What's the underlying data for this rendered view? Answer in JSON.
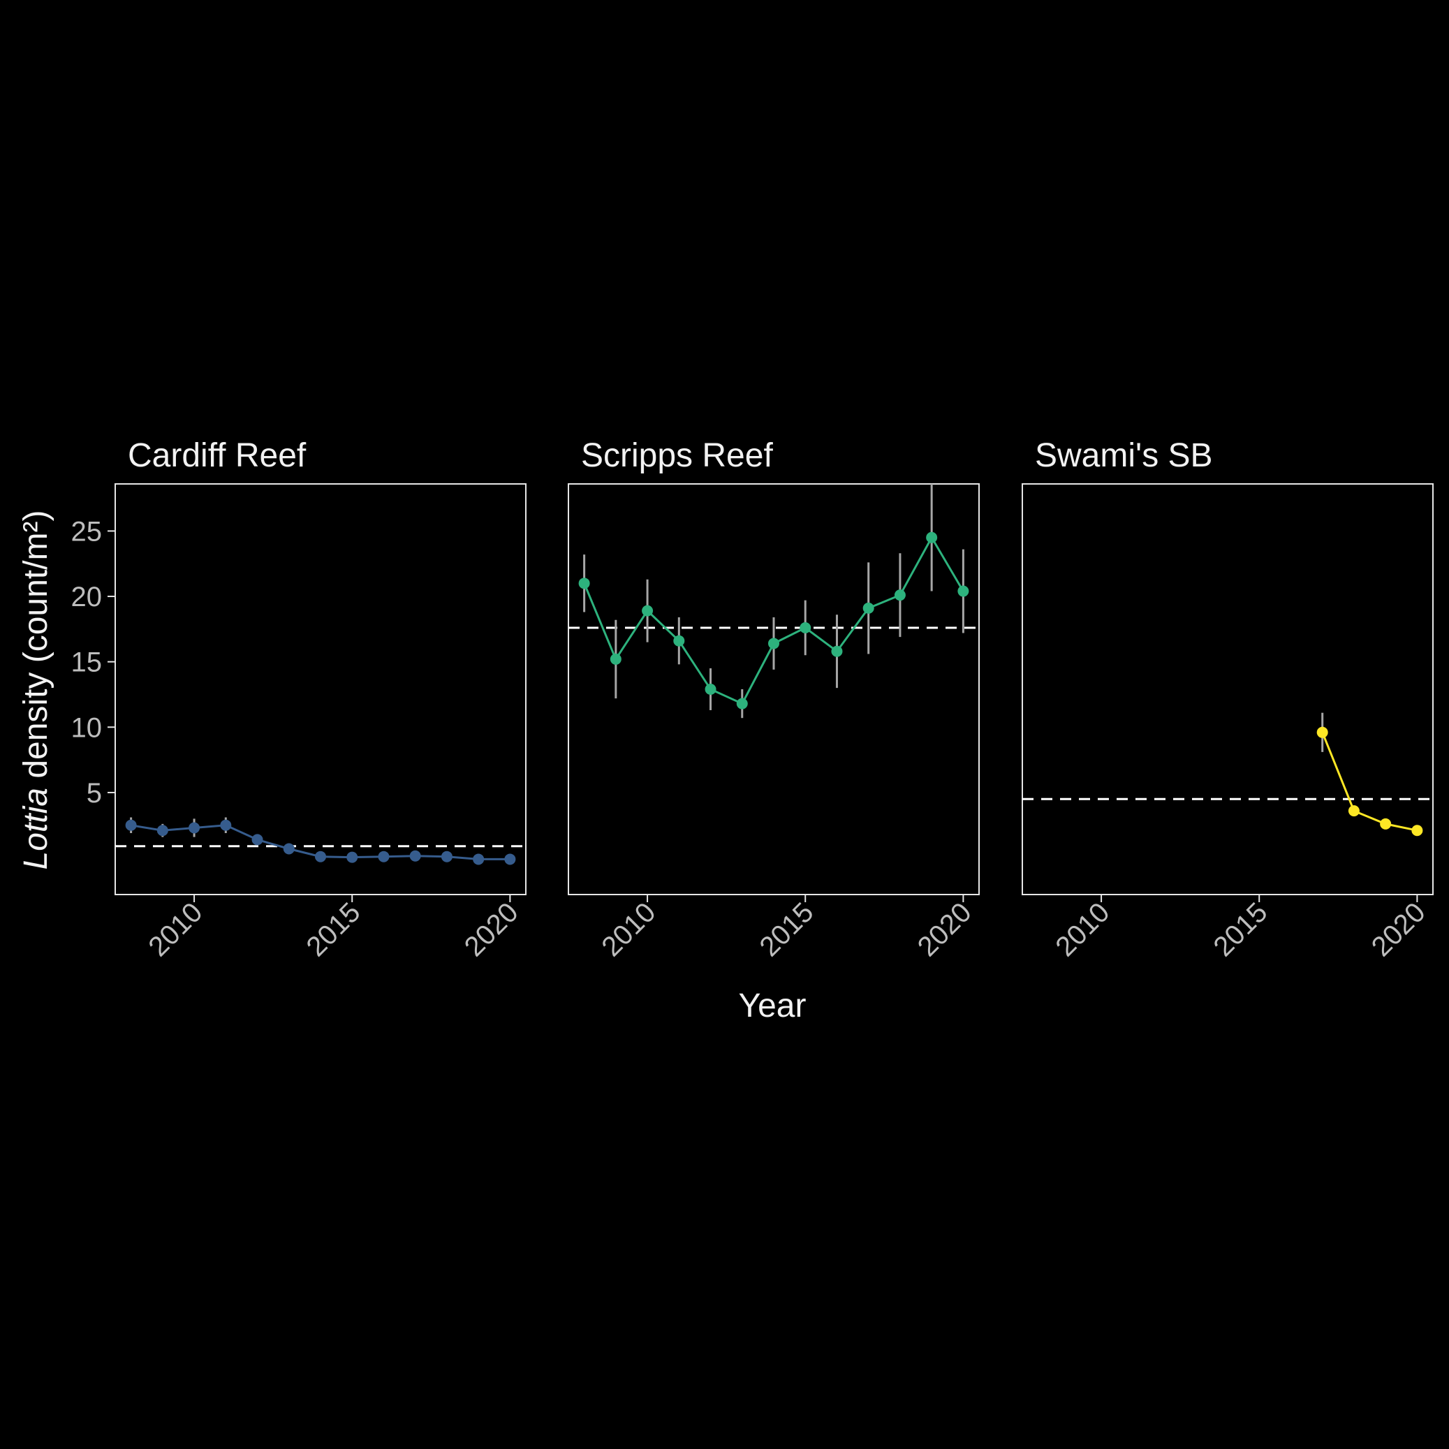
{
  "chart_data": {
    "type": "line",
    "facet": "panels",
    "xlabel": "Year",
    "ylabel": {
      "italic": "Lottia",
      "rest": " density (count/m²)"
    },
    "xlim": [
      2007.5,
      2020.5
    ],
    "ylim": [
      -2.8,
      28.6
    ],
    "x_ticks": [
      2010,
      2015,
      2020
    ],
    "y_ticks": [
      5,
      10,
      15,
      20,
      25
    ],
    "x_tick_labels": [
      "2010",
      "2015",
      "2020"
    ],
    "y_tick_labels": [
      "5",
      "10",
      "15",
      "20",
      "25"
    ],
    "grid": false,
    "legend": "none",
    "colors": {
      "background": "#000000",
      "frame": "#e6e6e6",
      "error_bar": "#a6a6a6",
      "reference_line": "#ffffff"
    },
    "panels": [
      {
        "title": "Cardiff Reef",
        "color": "#365c8d",
        "mean_line": 0.9,
        "x": [
          2008,
          2009,
          2010,
          2011,
          2012,
          2013,
          2014,
          2015,
          2016,
          2017,
          2018,
          2019,
          2020
        ],
        "y": [
          2.5,
          2.1,
          2.3,
          2.5,
          1.4,
          0.7,
          0.1,
          0.05,
          0.1,
          0.15,
          0.1,
          -0.1,
          -0.1
        ],
        "err": [
          0.6,
          0.5,
          0.7,
          0.6,
          0.3,
          0.2,
          0.1,
          0.1,
          0.1,
          0.1,
          0.1,
          0.1,
          0.1
        ]
      },
      {
        "title": "Scripps Reef",
        "color": "#2db27d",
        "mean_line": 17.6,
        "x": [
          2008,
          2009,
          2010,
          2011,
          2012,
          2013,
          2014,
          2015,
          2016,
          2017,
          2018,
          2019,
          2020
        ],
        "y": [
          21.0,
          15.2,
          18.9,
          16.6,
          12.9,
          11.8,
          16.4,
          17.6,
          15.8,
          19.1,
          20.1,
          24.5,
          20.4
        ],
        "err": [
          2.2,
          3.0,
          2.4,
          1.8,
          1.6,
          1.1,
          2.0,
          2.1,
          2.8,
          3.5,
          3.2,
          4.1,
          3.2
        ]
      },
      {
        "title": "Swami's SB",
        "color": "#fde725",
        "mean_line": 4.5,
        "x": [
          2017,
          2018,
          2019,
          2020
        ],
        "y": [
          9.6,
          3.6,
          2.6,
          2.1
        ],
        "err": [
          1.5,
          0.4,
          0.3,
          0.3
        ]
      }
    ]
  }
}
